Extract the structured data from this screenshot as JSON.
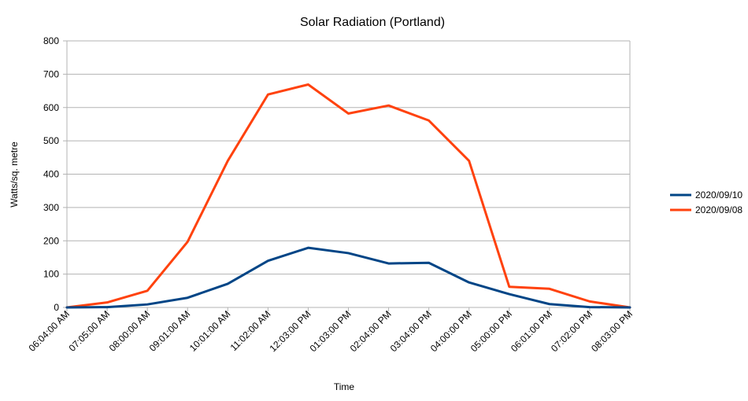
{
  "chart_data": {
    "type": "line",
    "title": "Solar Radiation (Portland)",
    "xlabel": "Time",
    "ylabel": "Watts/sq. metre",
    "ylim": [
      0,
      800
    ],
    "ytick_step": 100,
    "grid": true,
    "legend_position": "right",
    "categories": [
      "06:04:00 AM",
      "07:05:00 AM",
      "08:00:00 AM",
      "09:01:00 AM",
      "10:01:00 AM",
      "11:02:00 AM",
      "12:03:00 PM",
      "01:03:00 PM",
      "02:04:00 PM",
      "03:04:00 PM",
      "04:00:00 PM",
      "05:00:00 PM",
      "06:01:00 PM",
      "07:02:00 PM",
      "08:03:00 PM"
    ],
    "series": [
      {
        "name": "2020/09/10",
        "color": "#004586",
        "values": [
          0,
          1,
          9,
          29,
          71,
          140,
          179,
          163,
          132,
          134,
          75,
          40,
          10,
          1,
          0
        ]
      },
      {
        "name": "2020/09/08",
        "color": "#ff420e",
        "values": [
          0,
          15,
          50,
          197,
          440,
          639,
          669,
          582,
          606,
          561,
          440,
          62,
          56,
          18,
          0
        ]
      }
    ]
  }
}
